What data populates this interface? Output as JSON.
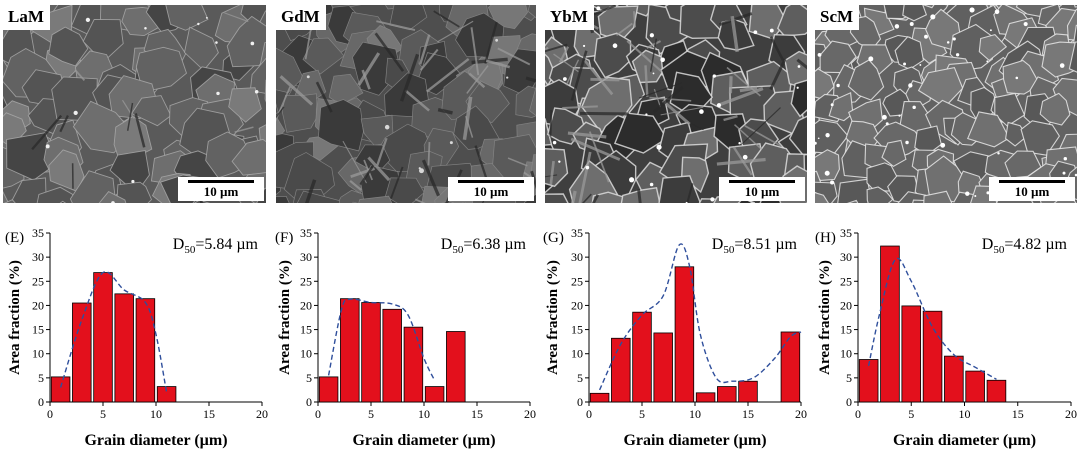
{
  "panels": [
    {
      "label": "LaM",
      "scale": "10 µm"
    },
    {
      "label": "GdM",
      "scale": "10 µm"
    },
    {
      "label": "YbM",
      "scale": "10 µm"
    },
    {
      "label": "ScM",
      "scale": "10 µm"
    }
  ],
  "chart_data": [
    {
      "type": "bar",
      "panel_label": "(E)",
      "annotation": "D50=5.84 µm",
      "xlabel": "Grain diameter (µm)",
      "ylabel": "Area fraction (%)",
      "xlim": [
        0,
        20
      ],
      "ylim": [
        0,
        35
      ],
      "xticks": [
        0,
        5,
        10,
        15,
        20
      ],
      "yticks": [
        0,
        5,
        10,
        15,
        20,
        25,
        30,
        35
      ],
      "x": [
        1,
        3,
        5,
        7,
        9,
        11
      ],
      "values": [
        5.2,
        20.5,
        26.8,
        22.4,
        21.4,
        3.2
      ],
      "fit_curve": [
        [
          1,
          3
        ],
        [
          3,
          17
        ],
        [
          5,
          26.8
        ],
        [
          7,
          23.2
        ],
        [
          9,
          20.6
        ],
        [
          10,
          14
        ],
        [
          11,
          2
        ]
      ],
      "bar_color": "#e3101c",
      "fit_color": "#2f4f9c",
      "grid": false
    },
    {
      "type": "bar",
      "panel_label": "(F)",
      "annotation": "D50=6.38 µm",
      "xlabel": "Grain diameter (µm)",
      "ylabel": "Area fraction (%)",
      "xlim": [
        0,
        20
      ],
      "ylim": [
        0,
        35
      ],
      "xticks": [
        0,
        5,
        10,
        15,
        20
      ],
      "yticks": [
        0,
        5,
        10,
        15,
        20,
        25,
        30,
        35
      ],
      "x": [
        1,
        3,
        5,
        7,
        9,
        11,
        13
      ],
      "values": [
        5.2,
        21.4,
        20.6,
        19.2,
        15.5,
        3.2,
        14.6
      ],
      "fit_curve": [
        [
          1,
          5.5
        ],
        [
          2.2,
          19
        ],
        [
          3,
          21.3
        ],
        [
          5,
          20.6
        ],
        [
          7,
          20.3
        ],
        [
          8.5,
          18
        ],
        [
          10,
          9
        ],
        [
          11,
          4.5
        ]
      ],
      "bar_color": "#e3101c",
      "fit_color": "#2f4f9c",
      "grid": false
    },
    {
      "type": "bar",
      "panel_label": "(G)",
      "annotation": "D50=8.51 µm",
      "xlabel": "Grain diameter (µm)",
      "ylabel": "Area fraction (%)",
      "xlim": [
        0,
        20
      ],
      "ylim": [
        0,
        35
      ],
      "xticks": [
        0,
        5,
        10,
        15,
        20
      ],
      "yticks": [
        0,
        5,
        10,
        15,
        20,
        25,
        30,
        35
      ],
      "x": [
        1,
        3,
        5,
        7,
        9,
        11,
        13,
        15,
        19
      ],
      "values": [
        1.8,
        13.2,
        18.6,
        14.3,
        28,
        1.9,
        3.2,
        4.3,
        14.5
      ],
      "fit_curve": [
        [
          1,
          2.5
        ],
        [
          3,
          12
        ],
        [
          5,
          18
        ],
        [
          7,
          22
        ],
        [
          8.5,
          32.5
        ],
        [
          9.5,
          28
        ],
        [
          10.5,
          14
        ],
        [
          12,
          5
        ],
        [
          13.5,
          4.3
        ],
        [
          15.5,
          5
        ],
        [
          17.5,
          9
        ],
        [
          19,
          13.5
        ],
        [
          20,
          14.5
        ]
      ],
      "bar_color": "#e3101c",
      "fit_color": "#2f4f9c",
      "grid": false
    },
    {
      "type": "bar",
      "panel_label": "(H)",
      "annotation": "D50=4.82 µm",
      "xlabel": "Grain diameter (µm)",
      "ylabel": "Area fraction (%)",
      "xlim": [
        0,
        20
      ],
      "ylim": [
        0,
        35
      ],
      "xticks": [
        0,
        5,
        10,
        15,
        20
      ],
      "yticks": [
        0,
        5,
        10,
        15,
        20,
        25,
        30,
        35
      ],
      "x": [
        1,
        3,
        5,
        7,
        9,
        11,
        13
      ],
      "values": [
        8.8,
        32.3,
        19.9,
        18.8,
        9.5,
        6.4,
        4.5
      ],
      "fit_curve": [
        [
          1,
          7.5
        ],
        [
          2,
          18
        ],
        [
          3.5,
          29.5
        ],
        [
          5,
          25
        ],
        [
          7,
          15.5
        ],
        [
          9,
          9.8
        ],
        [
          11,
          7.2
        ],
        [
          13,
          4.7
        ]
      ],
      "bar_color": "#e3101c",
      "fit_color": "#2f4f9c",
      "grid": false
    }
  ]
}
